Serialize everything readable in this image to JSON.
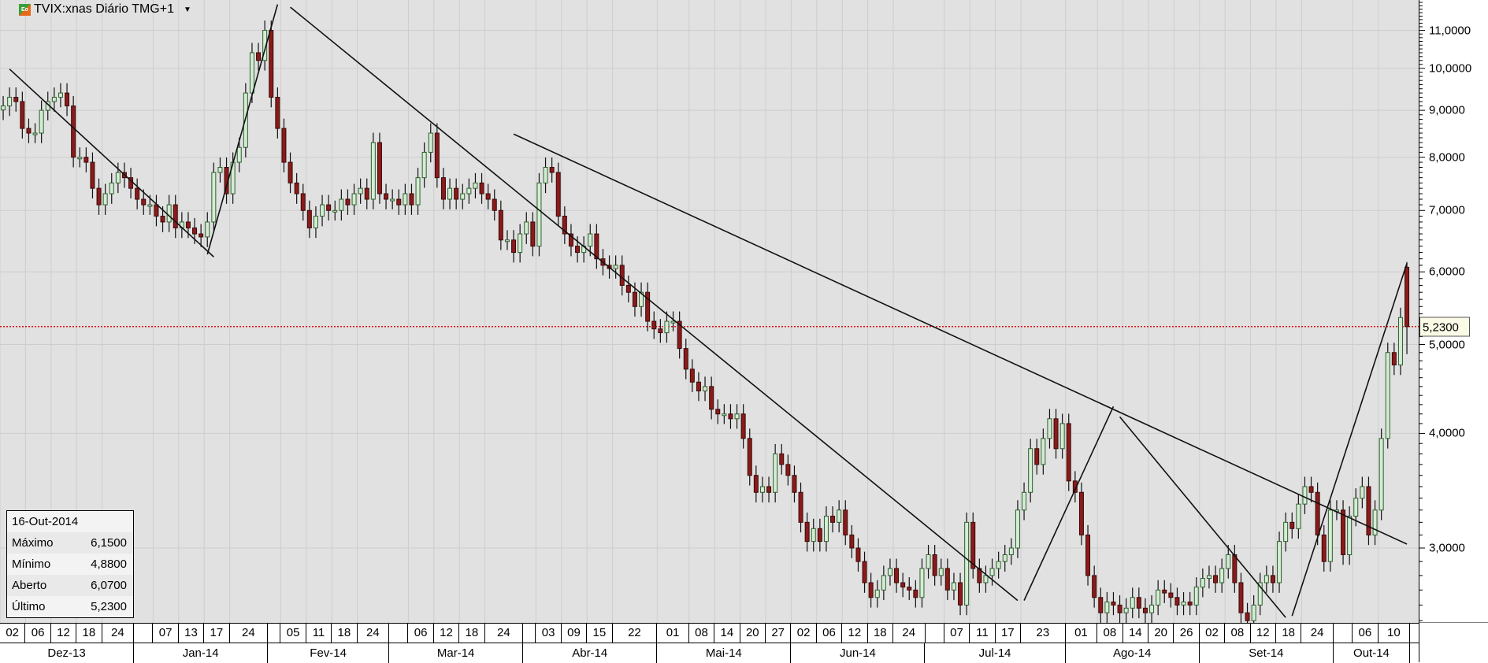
{
  "header": {
    "title": "TVIX:xnas Diário TMG+1",
    "logo_text": "Eo",
    "dropdown_icon": "caret-down-icon"
  },
  "info_box": {
    "date": "16-Out-2014",
    "rows": [
      {
        "label": "Máximo",
        "value": "6,1500"
      },
      {
        "label": "Mínimo",
        "value": "4,8800"
      },
      {
        "label": "Aberto",
        "value": "6,0700"
      },
      {
        "label": "Último",
        "value": "5,2300"
      }
    ]
  },
  "colors": {
    "up": "#d4ecd4",
    "up_border": "#2e5e2e",
    "down": "#8b1a1a",
    "last_line": "#e01010",
    "background": "#e1e1e1",
    "grid": "#cdcdcd"
  },
  "chart_data": {
    "type": "candlestick",
    "y_scale": "log",
    "ylim": [
      2.35,
      11.9
    ],
    "grid": true,
    "y_ticks": [
      {
        "v": 3,
        "label": "3,0000"
      },
      {
        "v": 4,
        "label": "4,0000"
      },
      {
        "v": 5,
        "label": "5,0000"
      },
      {
        "v": 6,
        "label": "6,0000"
      },
      {
        "v": 7,
        "label": "7,0000"
      },
      {
        "v": 8,
        "label": "8,0000"
      },
      {
        "v": 9,
        "label": "9,0000"
      },
      {
        "v": 10,
        "label": "10,0000"
      },
      {
        "v": 11,
        "label": "11,0000"
      }
    ],
    "last_price": {
      "value": 5.23,
      "label": "5,2300"
    },
    "last_candle": {
      "open": 6.07,
      "high": 6.15,
      "low": 4.88,
      "close": 5.23
    },
    "months": [
      {
        "label": "Dez-13",
        "year": 2013,
        "month": 12,
        "days": [
          2,
          3,
          4,
          5,
          6,
          9,
          10,
          11,
          12,
          13,
          16,
          17,
          18,
          19,
          20,
          23,
          24,
          26,
          27,
          30,
          31
        ],
        "day_labels": [
          "02",
          "06",
          "12",
          "18",
          "24"
        ],
        "close": [
          9.1,
          9.3,
          9.2,
          8.6,
          8.5,
          8.5,
          9.0,
          9.2,
          9.3,
          9.4,
          9.1,
          8.0,
          8.0,
          7.9,
          7.4,
          7.1,
          7.3,
          7.5,
          7.7,
          7.6,
          7.4
        ]
      },
      {
        "label": "Jan-14",
        "year": 2014,
        "month": 1,
        "days": [
          2,
          3,
          6,
          7,
          8,
          9,
          10,
          13,
          14,
          15,
          16,
          17,
          21,
          22,
          23,
          24,
          27,
          28,
          29,
          30,
          31
        ],
        "day_labels": [
          "07",
          "13",
          "17",
          "24"
        ],
        "close": [
          7.2,
          7.1,
          7.1,
          6.9,
          6.8,
          7.1,
          6.7,
          6.8,
          6.7,
          6.6,
          6.55,
          6.8,
          7.7,
          7.8,
          7.3,
          7.9,
          8.2,
          9.4,
          10.4,
          10.2,
          11.0
        ]
      },
      {
        "label": "Fev-14",
        "year": 2014,
        "month": 2,
        "days": [
          3,
          4,
          5,
          6,
          7,
          10,
          11,
          12,
          13,
          14,
          18,
          19,
          20,
          21,
          24,
          25,
          26,
          27,
          28
        ],
        "day_labels": [
          "05",
          "11",
          "18",
          "24"
        ],
        "close": [
          9.3,
          8.6,
          7.9,
          7.5,
          7.3,
          7.0,
          6.7,
          6.9,
          7.1,
          7.0,
          7.0,
          7.2,
          7.1,
          7.3,
          7.4,
          7.2,
          8.3,
          7.3,
          7.2
        ]
      },
      {
        "label": "Mar-14",
        "year": 2014,
        "month": 3,
        "days": [
          3,
          4,
          5,
          6,
          7,
          10,
          11,
          12,
          13,
          14,
          17,
          18,
          19,
          20,
          21,
          24,
          25,
          26,
          27,
          28,
          31
        ],
        "day_labels": [
          "06",
          "12",
          "18",
          "24"
        ],
        "close": [
          7.2,
          7.1,
          7.3,
          7.1,
          7.6,
          8.1,
          8.5,
          7.6,
          7.2,
          7.4,
          7.2,
          7.3,
          7.4,
          7.5,
          7.3,
          7.2,
          7.0,
          6.5,
          6.5,
          6.3,
          6.6
        ]
      },
      {
        "label": "Abr-14",
        "year": 2014,
        "month": 4,
        "days": [
          1,
          2,
          3,
          4,
          7,
          8,
          9,
          10,
          11,
          14,
          15,
          16,
          17,
          21,
          22,
          23,
          24,
          25,
          28,
          29,
          30
        ],
        "day_labels": [
          "03",
          "09",
          "15",
          "22"
        ],
        "close": [
          6.8,
          6.4,
          7.5,
          7.8,
          7.7,
          6.9,
          6.6,
          6.4,
          6.3,
          6.4,
          6.6,
          6.2,
          6.1,
          6.05,
          6.1,
          5.8,
          5.7,
          5.5,
          5.7,
          5.3,
          5.2
        ]
      },
      {
        "label": "Mai-14",
        "year": 2014,
        "month": 5,
        "days": [
          1,
          2,
          5,
          6,
          7,
          8,
          9,
          12,
          13,
          14,
          15,
          16,
          19,
          20,
          21,
          22,
          23,
          27,
          28,
          29,
          30
        ],
        "day_labels": [
          "01",
          "08",
          "14",
          "20",
          "27"
        ],
        "close": [
          5.15,
          5.3,
          5.3,
          4.95,
          4.7,
          4.55,
          4.45,
          4.5,
          4.25,
          4.2,
          4.2,
          4.15,
          4.2,
          3.95,
          3.6,
          3.45,
          3.5,
          3.45,
          3.8,
          3.7,
          3.6
        ]
      },
      {
        "label": "Jun-14",
        "year": 2014,
        "month": 6,
        "days": [
          2,
          3,
          4,
          5,
          6,
          9,
          10,
          11,
          12,
          13,
          16,
          17,
          18,
          19,
          20,
          23,
          24,
          25,
          26,
          27,
          30
        ],
        "day_labels": [
          "02",
          "06",
          "12",
          "18",
          "24"
        ],
        "close": [
          3.45,
          3.2,
          3.05,
          3.15,
          3.05,
          3.25,
          3.2,
          3.3,
          3.1,
          3.0,
          2.9,
          2.75,
          2.65,
          2.7,
          2.8,
          2.85,
          2.75,
          2.72,
          2.7,
          2.65,
          2.85
        ]
      },
      {
        "label": "Jul-14",
        "year": 2014,
        "month": 7,
        "days": [
          1,
          2,
          3,
          7,
          8,
          9,
          10,
          11,
          14,
          15,
          16,
          17,
          18,
          21,
          22,
          23,
          24,
          25,
          28,
          29,
          30,
          31
        ],
        "day_labels": [
          "07",
          "11",
          "17",
          "23"
        ],
        "close": [
          2.95,
          2.8,
          2.85,
          2.7,
          2.75,
          2.6,
          3.2,
          2.85,
          2.75,
          2.8,
          2.85,
          2.9,
          2.95,
          3.0,
          3.3,
          3.45,
          3.85,
          3.7,
          3.95,
          4.15,
          3.85,
          4.1
        ]
      },
      {
        "label": "Ago-14",
        "year": 2014,
        "month": 8,
        "days": [
          1,
          4,
          5,
          6,
          7,
          8,
          11,
          12,
          13,
          14,
          15,
          18,
          19,
          20,
          21,
          22,
          25,
          26,
          27,
          28,
          29
        ],
        "day_labels": [
          "01",
          "08",
          "14",
          "20",
          "26"
        ],
        "close": [
          3.55,
          3.45,
          3.1,
          2.8,
          2.65,
          2.55,
          2.62,
          2.6,
          2.55,
          2.58,
          2.65,
          2.58,
          2.55,
          2.6,
          2.7,
          2.68,
          2.65,
          2.6,
          2.62,
          2.6,
          2.72
        ]
      },
      {
        "label": "Set-14",
        "year": 2014,
        "month": 9,
        "days": [
          2,
          3,
          4,
          5,
          8,
          9,
          10,
          11,
          12,
          15,
          16,
          17,
          18,
          19,
          22,
          23,
          24,
          25,
          26,
          29,
          30
        ],
        "day_labels": [
          "02",
          "08",
          "12",
          "18",
          "24"
        ],
        "close": [
          2.78,
          2.8,
          2.75,
          2.85,
          2.95,
          2.75,
          2.55,
          2.5,
          2.6,
          2.75,
          2.8,
          2.75,
          3.05,
          3.2,
          3.15,
          3.35,
          3.5,
          3.45,
          3.1,
          2.9,
          3.3
        ]
      },
      {
        "label": "Out-14",
        "year": 2014,
        "month": 10,
        "days": [
          1,
          2,
          3,
          6,
          7,
          8,
          9,
          10,
          13,
          14,
          15,
          16
        ],
        "day_labels": [
          "06",
          "10"
        ],
        "close": [
          3.3,
          2.95,
          3.25,
          3.4,
          3.5,
          3.1,
          3.3,
          3.95,
          4.9,
          4.75,
          5.35,
          5.23
        ]
      }
    ],
    "trendlines": [
      {
        "from": {
          "date": "2013-12-03",
          "price": 9.98
        },
        "to": {
          "date": "2014-01-21",
          "price": 6.23
        }
      },
      {
        "from": {
          "date": "2014-01-17",
          "price": 6.27
        },
        "to": {
          "date": "2014-02-04",
          "price": 11.74
        }
      },
      {
        "from": {
          "date": "2014-02-06",
          "price": 11.66
        },
        "to": {
          "date": "2014-07-22",
          "price": 2.63
        }
      },
      {
        "from": {
          "date": "2014-03-28",
          "price": 8.48
        },
        "to": {
          "date": "2014-10-16",
          "price": 3.03
        }
      },
      {
        "from": {
          "date": "2014-07-23",
          "price": 2.63
        },
        "to": {
          "date": "2014-08-12",
          "price": 4.28
        }
      },
      {
        "from": {
          "date": "2014-08-13",
          "price": 4.17
        },
        "to": {
          "date": "2014-09-19",
          "price": 2.52
        }
      },
      {
        "from": {
          "date": "2014-09-22",
          "price": 2.53
        },
        "to": {
          "date": "2014-10-16",
          "price": 6.13
        }
      }
    ]
  }
}
